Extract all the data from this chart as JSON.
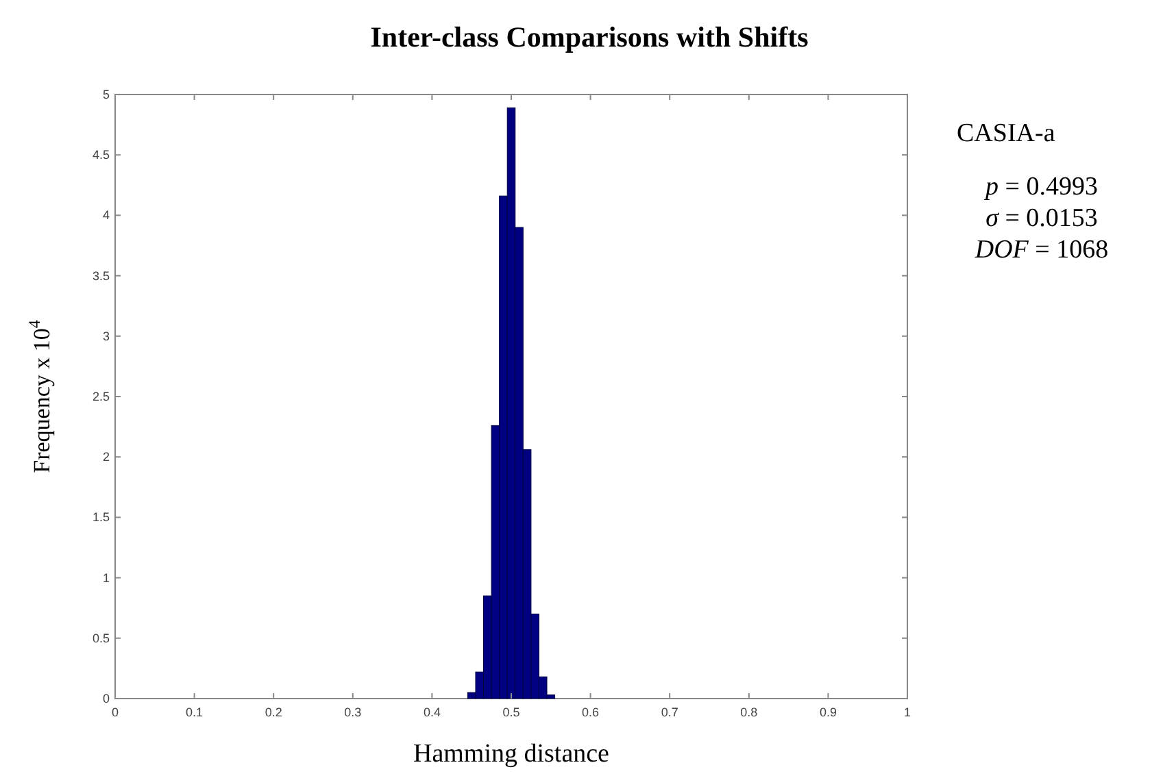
{
  "chart_data": {
    "type": "histogram",
    "title": "Inter-class Comparisons with Shifts",
    "xlabel": "Hamming distance",
    "ylabel": "Frequency x 10$^{4}$",
    "bins": [
      0.445,
      0.455,
      0.465,
      0.475,
      0.485,
      0.495,
      0.505,
      0.515,
      0.525,
      0.535,
      0.545,
      0.555
    ],
    "values": [
      0.05,
      0.22,
      0.85,
      2.26,
      4.16,
      4.89,
      3.9,
      2.06,
      0.7,
      0.18,
      0.03
    ],
    "color": "#000080",
    "xlim": [
      0,
      1
    ],
    "xticks": [
      0,
      0.1,
      0.2,
      0.3,
      0.4,
      0.5,
      0.6,
      0.7,
      0.8,
      0.9,
      1
    ],
    "ylim": [
      0,
      5
    ],
    "yticks": [
      0,
      0.5,
      1,
      1.5,
      2,
      2.5,
      3,
      3.5,
      4,
      4.5,
      5
    ],
    "annotations": [
      "CASIA-a",
      "p = 0.4993",
      "σ = 0.0153",
      "DOF = 1068"
    ]
  }
}
